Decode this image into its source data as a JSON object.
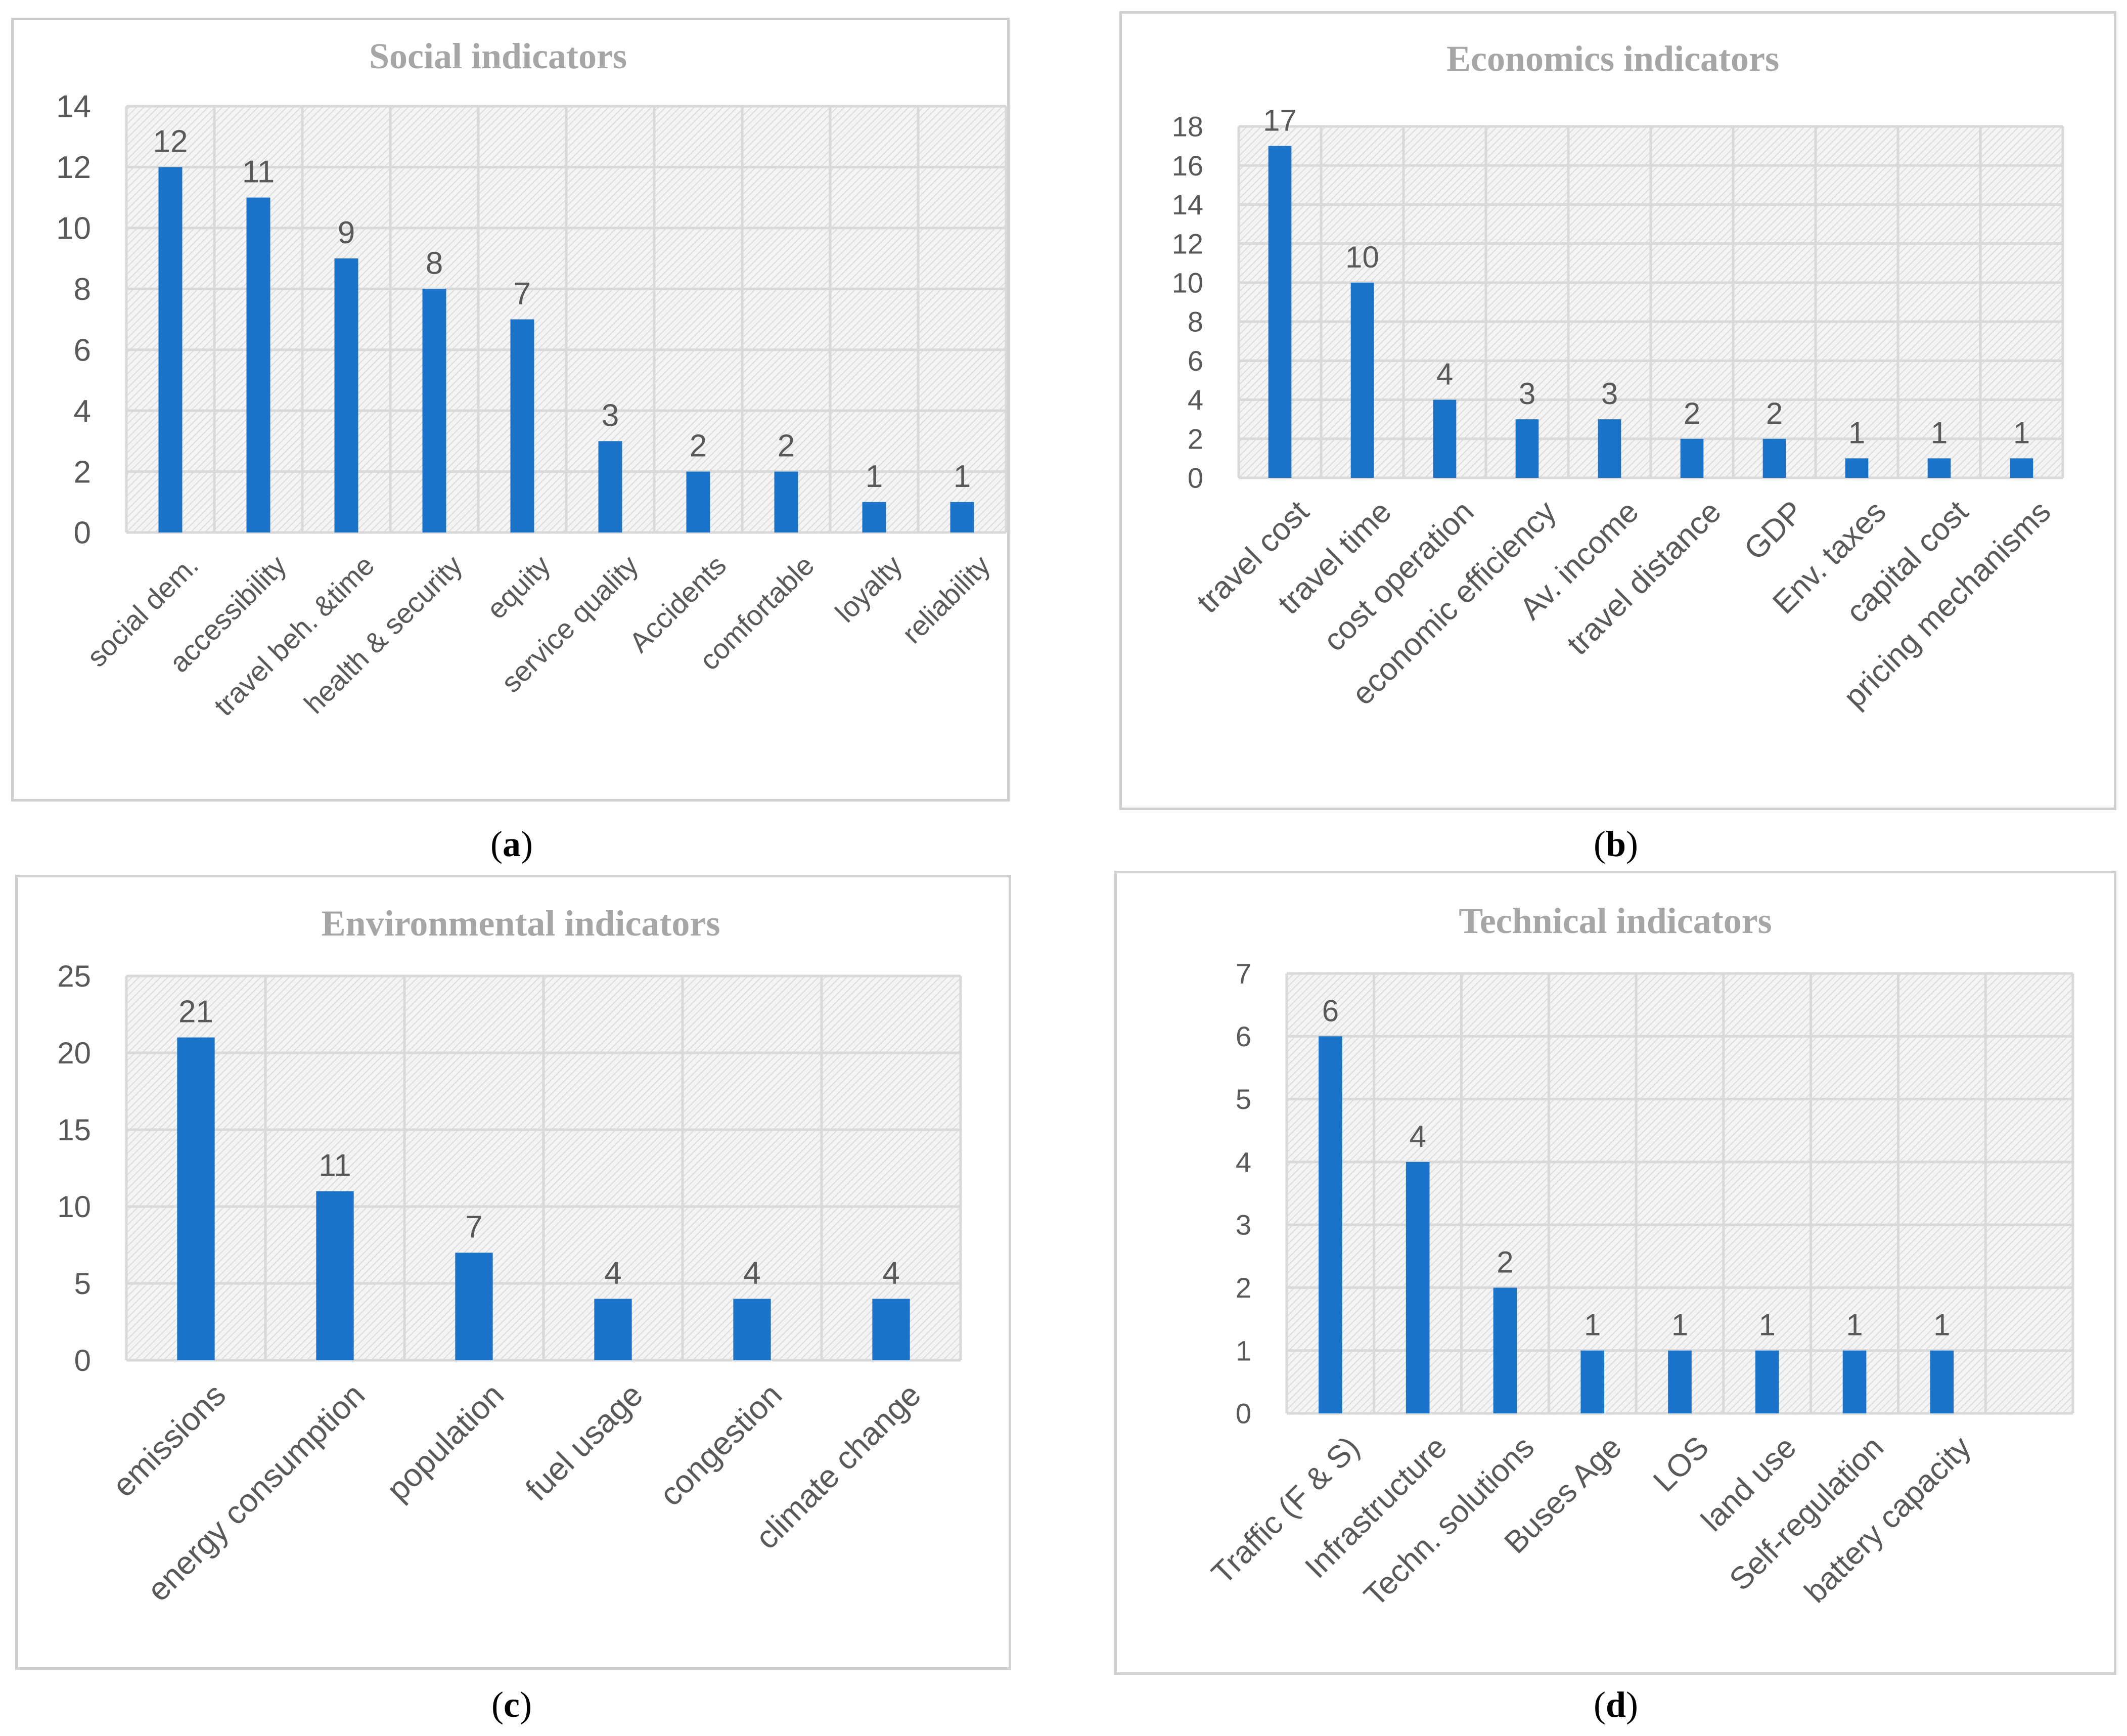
{
  "colors": {
    "bar": "#1a73c8",
    "grid": "#d9d9d9",
    "axis_text": "#595959",
    "title": "#a6a6a6"
  },
  "panel_labels": {
    "a": {
      "open": "(",
      "letter": "a",
      "close": ")"
    },
    "b": {
      "open": "(",
      "letter": "b",
      "close": ")"
    },
    "c": {
      "open": "(",
      "letter": "c",
      "close": ")"
    },
    "d": {
      "open": "(",
      "letter": "d",
      "close": ")"
    }
  },
  "chart_data": [
    {
      "id": "a",
      "type": "bar",
      "title": "Social indicators",
      "categories": [
        "social dem.",
        "accessibility",
        "travel beh. &time",
        "health & security",
        "equity",
        "service quality",
        "Accidents",
        "comfortable",
        "loyalty",
        "reliability"
      ],
      "values": [
        12,
        11,
        9,
        8,
        7,
        3,
        2,
        2,
        1,
        1
      ],
      "ylim": [
        0,
        14
      ],
      "yticks": [
        0,
        2,
        4,
        6,
        8,
        10,
        12,
        14
      ],
      "grid": true,
      "data_labels": true,
      "label_font": "serif"
    },
    {
      "id": "b",
      "type": "bar",
      "title": "Economics indicators",
      "categories": [
        "travel cost",
        "travel time",
        "cost operation",
        "economic efficiency",
        "Av. income",
        "travel distance",
        "GDP",
        "Env. taxes",
        "capital cost",
        "pricing mechanisms"
      ],
      "values": [
        17,
        10,
        4,
        3,
        3,
        2,
        2,
        1,
        1,
        1
      ],
      "ylim": [
        0,
        18
      ],
      "yticks": [
        0,
        2,
        4,
        6,
        8,
        10,
        12,
        14,
        16,
        18
      ],
      "grid": true,
      "data_labels": true,
      "label_font": "sans"
    },
    {
      "id": "c",
      "type": "bar",
      "title": "Environmental indicators",
      "categories": [
        "emissions",
        "energy consumption",
        "population",
        "fuel usage",
        "congestion",
        "climate change"
      ],
      "values": [
        21,
        11,
        7,
        4,
        4,
        4
      ],
      "ylim": [
        0,
        25
      ],
      "yticks": [
        0,
        5,
        10,
        15,
        20,
        25
      ],
      "grid": true,
      "data_labels": true,
      "label_font": "sans"
    },
    {
      "id": "d",
      "type": "bar",
      "title": "Technical  indicators",
      "categories": [
        "Traffic (F & S)",
        "Infrastructure",
        "Techn. solutions",
        "Buses Age",
        "LOS",
        "land use",
        "Self-regulation",
        "battery capacity",
        ""
      ],
      "values": [
        6,
        4,
        2,
        1,
        1,
        1,
        1,
        1,
        null
      ],
      "ylim": [
        0,
        7
      ],
      "yticks": [
        0,
        1,
        2,
        3,
        4,
        5,
        6,
        7
      ],
      "grid": true,
      "data_labels": true,
      "label_font": "sans"
    }
  ]
}
